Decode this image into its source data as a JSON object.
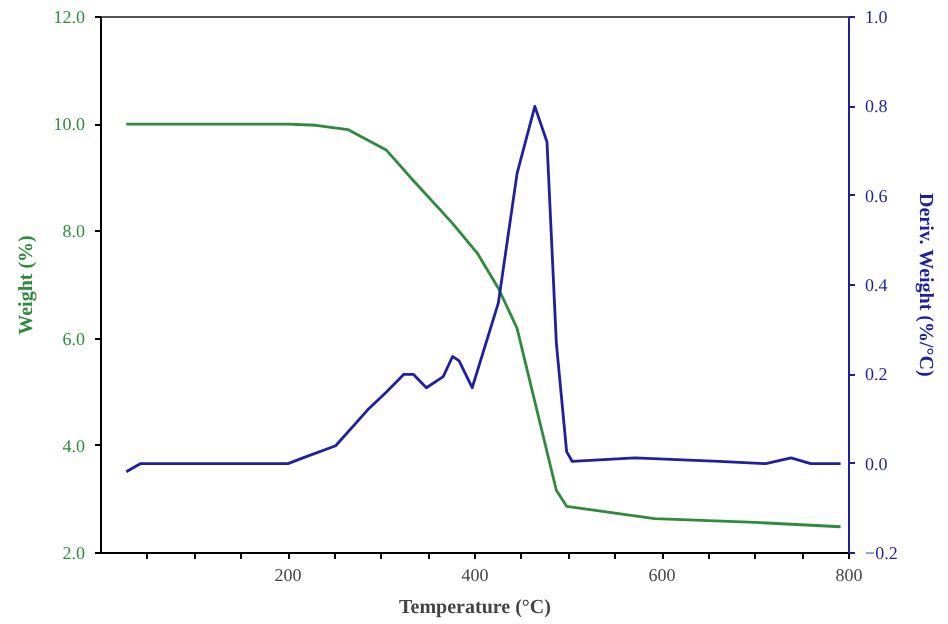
{
  "chart_data": {
    "type": "line",
    "xlabel": "Temperature (°C)",
    "ylabel": "Weight (%)",
    "y2label": "Deriv. Weight (%/°C)",
    "xlim": [
      0,
      800
    ],
    "xticks": [
      {
        "value": 50,
        "label": null
      },
      {
        "value": 100,
        "label": null
      },
      {
        "value": 150,
        "label": null
      },
      200,
      {
        "value": 250,
        "label": null
      },
      {
        "value": 300,
        "label": null
      },
      {
        "value": 350,
        "label": null
      },
      400,
      {
        "value": 450,
        "label": null
      },
      {
        "value": 500,
        "label": null
      },
      {
        "value": 550,
        "label": null
      },
      600,
      {
        "value": 650,
        "label": null
      },
      {
        "value": 700,
        "label": null
      },
      {
        "value": 750,
        "label": null
      },
      800
    ],
    "ylim": [
      2,
      12
    ],
    "yticks": [
      {
        "value": 2,
        "label": "2.0"
      },
      {
        "value": 4,
        "label": "4.0"
      },
      {
        "value": 6,
        "label": "6.0"
      },
      {
        "value": 8,
        "label": "8.0"
      },
      {
        "value": 10,
        "label": "10.0"
      },
      {
        "value": 12,
        "label": "12.0"
      }
    ],
    "y2lim": [
      -0.2,
      1.0
    ],
    "y2ticks": [
      -0.2,
      {
        "value": 0,
        "label": "0.0"
      },
      0.2,
      0.4,
      0.6,
      0.8,
      {
        "value": 1,
        "label": "1.0"
      }
    ],
    "grid": false,
    "series": [
      {
        "color": "#2f8a3e",
        "x": [
          27,
          100,
          200,
          230,
          264,
          305,
          334,
          376,
          403,
          425,
          445,
          466,
          487,
          498,
          592,
          700,
          791
        ],
        "values": [
          10.0,
          10.0,
          10.0,
          9.98,
          9.9,
          9.52,
          8.95,
          8.15,
          7.58,
          6.94,
          6.19,
          4.68,
          3.17,
          2.87,
          2.64,
          2.57,
          2.49
        ]
      },
      {
        "color": "#1f1fa0",
        "axis": "y2",
        "x": [
          27,
          42,
          100,
          200,
          216,
          251,
          285,
          305,
          324,
          334,
          348,
          366,
          376,
          383,
          397,
          425,
          445,
          464,
          477,
          487,
          498,
          504,
          571,
          661,
          711,
          738,
          759,
          791
        ],
        "values": [
          -0.018,
          0.0,
          0.0,
          0.0,
          0.013,
          0.04,
          0.12,
          0.16,
          0.2,
          0.2,
          0.17,
          0.195,
          0.24,
          0.23,
          0.17,
          0.36,
          0.65,
          0.8,
          0.72,
          0.27,
          0.027,
          0.005,
          0.013,
          0.005,
          0.0,
          0.013,
          0.0,
          0.0
        ]
      }
    ]
  }
}
